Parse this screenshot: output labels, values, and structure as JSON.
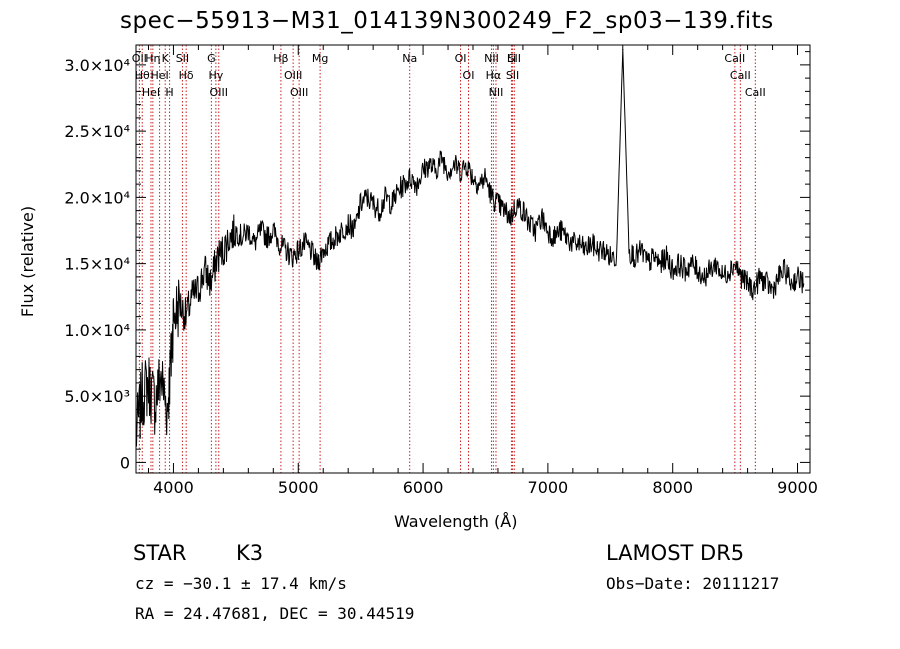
{
  "chart_data": {
    "type": "line",
    "title": "spec−55913−M31_014139N300249_F2_sp03−139.fits",
    "xlabel": "Wavelength (Å)",
    "ylabel": "Flux (relative)",
    "xlim": [
      3700,
      9100
    ],
    "ylim": [
      -800,
      31500
    ],
    "xticks": [
      {
        "value": 4000,
        "label": "4000"
      },
      {
        "value": 5000,
        "label": "5000"
      },
      {
        "value": 6000,
        "label": "6000"
      },
      {
        "value": 7000,
        "label": "7000"
      },
      {
        "value": 8000,
        "label": "8000"
      },
      {
        "value": 9000,
        "label": "9000"
      }
    ],
    "yticks": [
      {
        "value": 0,
        "label": "0"
      },
      {
        "value": 5000,
        "label": "5.0×10³"
      },
      {
        "value": 10000,
        "label": "1.0×10⁴"
      },
      {
        "value": 15000,
        "label": "1.5×10⁴"
      },
      {
        "value": 20000,
        "label": "2.0×10⁴"
      },
      {
        "value": 25000,
        "label": "2.5×10⁴"
      },
      {
        "value": 30000,
        "label": "3.0×10⁴"
      }
    ],
    "grid": false,
    "line_color": "#000000",
    "marker_color": "#cc2222",
    "series": [
      {
        "x": [
          3700,
          3750,
          3800,
          3850,
          3900,
          3950,
          3980,
          4000,
          4050,
          4100,
          4150,
          4200,
          4250,
          4300,
          4350,
          4400,
          4450,
          4500,
          4550,
          4600,
          4650,
          4700,
          4750,
          4800,
          4850,
          4900,
          4950,
          5000,
          5050,
          5100,
          5150,
          5200,
          5250,
          5300,
          5350,
          5400,
          5450,
          5500,
          5550,
          5600,
          5650,
          5700,
          5750,
          5800,
          5850,
          5900,
          5950,
          6000,
          6050,
          6100,
          6150,
          6200,
          6250,
          6300,
          6350,
          6400,
          6450,
          6500,
          6550,
          6600,
          6650,
          6700,
          6750,
          6800,
          6850,
          6900,
          6950,
          7000,
          7050,
          7100,
          7150,
          7200,
          7250,
          7300,
          7350,
          7400,
          7450,
          7500,
          7550,
          7600,
          7650,
          7700,
          7750,
          7800,
          7850,
          7900,
          7950,
          8000,
          8050,
          8100,
          8150,
          8200,
          8250,
          8300,
          8350,
          8400,
          8450,
          8500,
          8550,
          8600,
          8650,
          8700,
          8750,
          8800,
          8850,
          8900,
          8950,
          9000,
          9050
        ],
        "y": [
          2000,
          5000,
          6000,
          4500,
          6500,
          4000,
          7500,
          11000,
          12000,
          11000,
          12500,
          13000,
          14500,
          13500,
          15500,
          16000,
          17000,
          17500,
          17000,
          17500,
          16500,
          17500,
          17000,
          17500,
          16500,
          16000,
          15500,
          16000,
          16500,
          16000,
          15000,
          16000,
          16500,
          17000,
          17500,
          18000,
          17500,
          19500,
          20000,
          19500,
          19000,
          20000,
          19500,
          20500,
          21000,
          21500,
          21000,
          22000,
          22500,
          22000,
          23000,
          22000,
          22500,
          22000,
          22500,
          21500,
          21000,
          21500,
          20000,
          19500,
          19000,
          18500,
          19500,
          19000,
          18000,
          17500,
          18500,
          17500,
          17000,
          17500,
          17000,
          16500,
          16500,
          16000,
          16500,
          16000,
          16000,
          15500,
          15500,
          31200,
          16000,
          15500,
          16000,
          15000,
          15500,
          15000,
          15500,
          14500,
          15000,
          14500,
          15000,
          14500,
          14000,
          14500,
          15000,
          14000,
          14500,
          15000,
          14000,
          13500,
          13000,
          14000,
          13500,
          13000,
          14000,
          14500,
          13500,
          14000,
          13500
        ]
      }
    ],
    "lines": [
      {
        "x": 3727,
        "labels": [
          "OII"
        ]
      },
      {
        "x": 3750,
        "labels": [
          "Hθ"
        ]
      },
      {
        "x": 3820,
        "labels": [
          "HeI"
        ]
      },
      {
        "x": 3835,
        "labels": [
          "Hη"
        ]
      },
      {
        "x": 3889,
        "labels": [
          "HeI"
        ]
      },
      {
        "x": 3934,
        "labels": [
          "K"
        ]
      },
      {
        "x": 3969,
        "labels": [
          "H"
        ]
      },
      {
        "x": 4072,
        "labels": [
          "SII"
        ]
      },
      {
        "x": 4102,
        "labels": [
          "Hδ"
        ]
      },
      {
        "x": 4304,
        "labels": [
          "G"
        ]
      },
      {
        "x": 4340,
        "labels": [
          "Hγ"
        ]
      },
      {
        "x": 4363,
        "labels": [
          "OIII"
        ]
      },
      {
        "x": 4861,
        "labels": [
          "Hβ"
        ]
      },
      {
        "x": 4959,
        "labels": [
          "OIII"
        ]
      },
      {
        "x": 5007,
        "labels": [
          "OIII"
        ]
      },
      {
        "x": 5175,
        "labels": [
          "Mg"
        ]
      },
      {
        "x": 5893,
        "labels": [
          "Na"
        ]
      },
      {
        "x": 6300,
        "labels": [
          "OI"
        ]
      },
      {
        "x": 6364,
        "labels": [
          "OI"
        ]
      },
      {
        "x": 6548,
        "labels": [
          "NII"
        ]
      },
      {
        "x": 6563,
        "labels": [
          "Hα"
        ]
      },
      {
        "x": 6584,
        "labels": [
          "NII"
        ]
      },
      {
        "x": 6708,
        "labels": [
          "Li"
        ]
      },
      {
        "x": 6717,
        "labels": [
          "SII"
        ]
      },
      {
        "x": 6731,
        "labels": [
          "SII"
        ]
      },
      {
        "x": 8498,
        "labels": [
          "CaII"
        ]
      },
      {
        "x": 8542,
        "labels": [
          "CaII"
        ]
      },
      {
        "x": 8662,
        "labels": [
          "CaII"
        ]
      }
    ]
  },
  "info": {
    "class_label": "STAR",
    "subclass": "K3",
    "survey": "LAMOST DR5",
    "cz": "cz = −30.1 ± 17.4 km/s",
    "obs_date": "Obs−Date: 20111217",
    "coords": "RA =  24.47681, DEC =  30.44519"
  }
}
